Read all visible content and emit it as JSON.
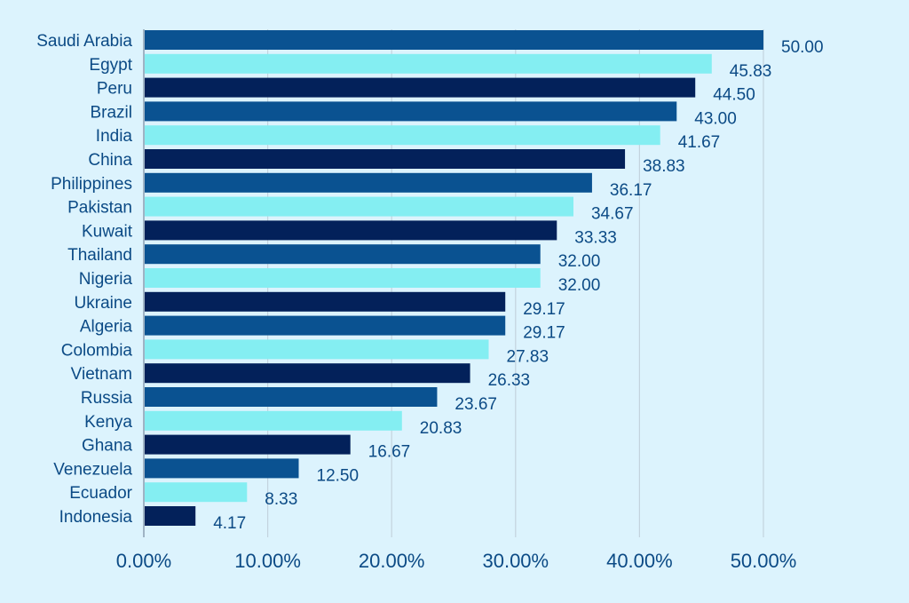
{
  "chart_data": {
    "type": "bar",
    "orientation": "horizontal",
    "title": "",
    "xlabel": "",
    "ylabel": "",
    "xlim": [
      0,
      50
    ],
    "grid": true,
    "x_ticks": [
      "0.00%",
      "10.00%",
      "20.00%",
      "30.00%",
      "40.00%",
      "50.00%"
    ],
    "categories": [
      "Saudi Arabia",
      "Egypt",
      "Peru",
      "Brazil",
      "India",
      "China",
      "Philippines",
      "Pakistan",
      "Kuwait",
      "Thailand",
      "Nigeria",
      "Ukraine",
      "Algeria",
      "Colombia",
      "Vietnam",
      "Russia",
      "Kenya",
      "Ghana",
      "Venezuela",
      "Ecuador",
      "Indonesia"
    ],
    "values": [
      50.0,
      45.83,
      44.5,
      43.0,
      41.67,
      38.83,
      36.17,
      34.67,
      33.33,
      32.0,
      32.0,
      29.17,
      29.17,
      27.83,
      26.33,
      23.67,
      20.83,
      16.67,
      12.5,
      8.33,
      4.17
    ],
    "value_labels": [
      "50.00",
      "45.83",
      "44.50",
      "43.00",
      "41.67",
      "38.83",
      "36.17",
      "34.67",
      "33.33",
      "32.00",
      "32.00",
      "29.17",
      "29.17",
      "27.83",
      "26.33",
      "23.67",
      "20.83",
      "16.67",
      "12.50",
      "8.33",
      "4.17"
    ],
    "bar_colors": [
      "#0a5291",
      "#84eef2",
      "#03215a"
    ]
  }
}
